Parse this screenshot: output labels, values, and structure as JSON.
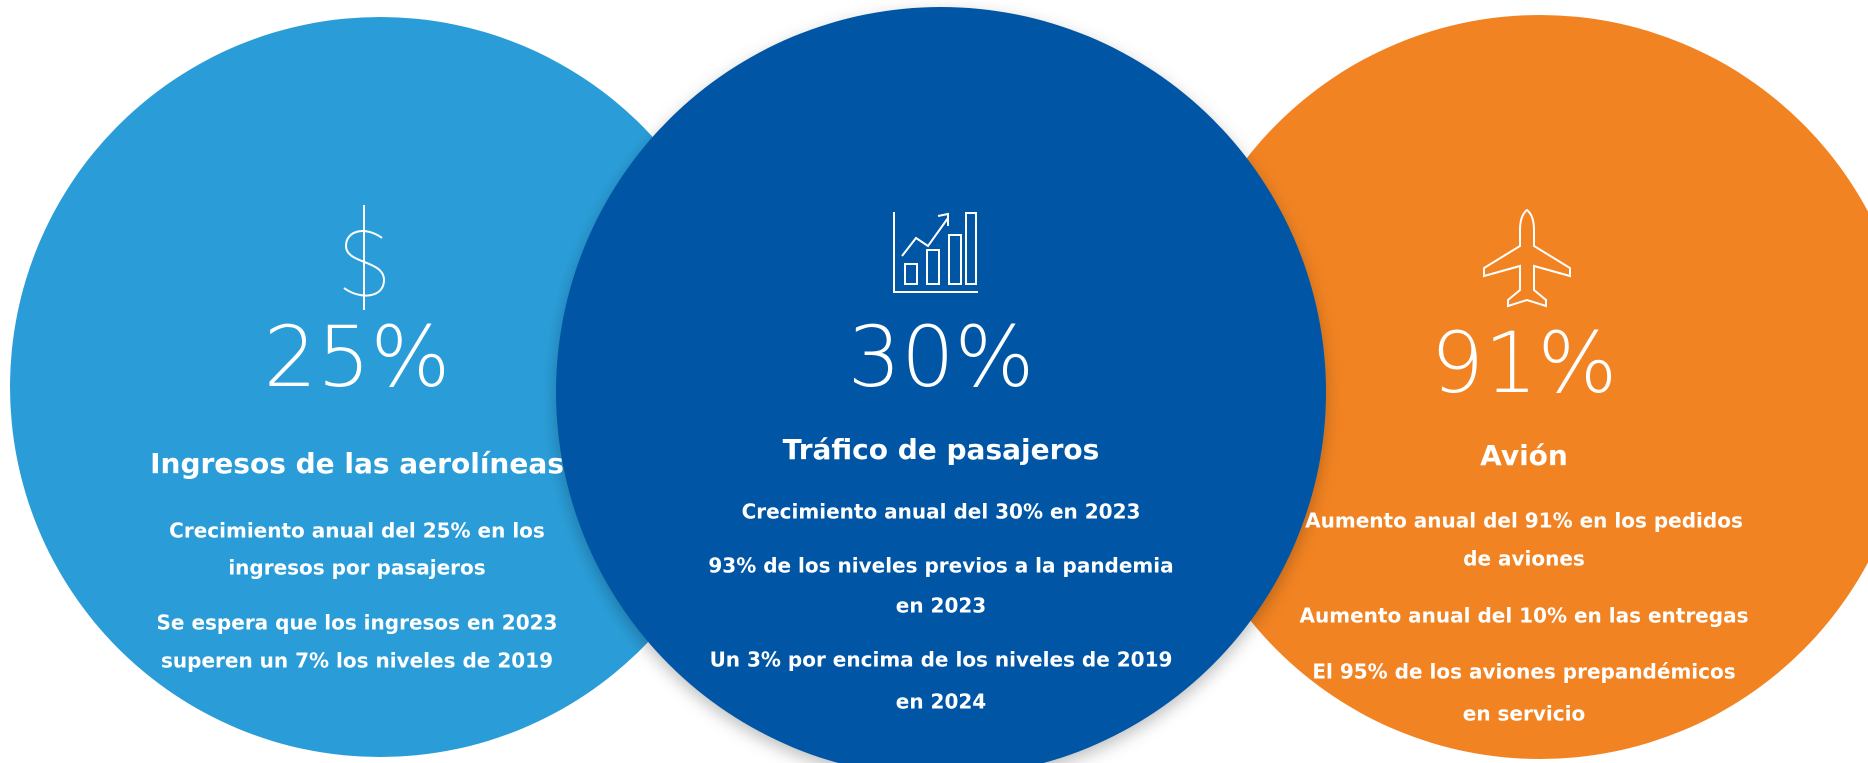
{
  "panels": [
    {
      "value": "25%",
      "title": "Ingresos de las aerolíneas",
      "items": [
        [
          "Crecimiento anual del 25% en los",
          "ingresos por pasajeros"
        ],
        [
          "Se espera que los ingresos en 2023",
          "superen un 7% los niveles de 2019"
        ]
      ]
    },
    {
      "value": "30%",
      "title": "Tráfico de pasajeros",
      "items": [
        [
          "Crecimiento anual del 30% en 2023"
        ],
        [
          "93% de los niveles previos a la pandemia",
          "en 2023"
        ],
        [
          "Un 3% por encima de los niveles de 2019",
          "en 2024"
        ]
      ]
    },
    {
      "value": "91%",
      "title": "Avión",
      "items": [
        [
          "Aumento anual del 91% en los pedidos",
          "de aviones"
        ],
        [
          "Aumento anual del 10% en las entregas"
        ],
        [
          "El 95% de los aviones prepandémicos",
          "en servicio"
        ]
      ]
    }
  ]
}
